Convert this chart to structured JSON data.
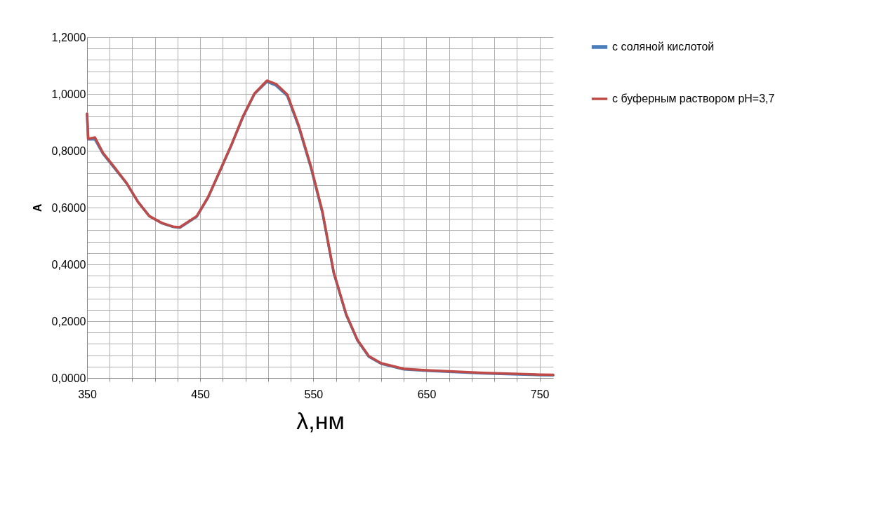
{
  "chart_data": {
    "type": "line",
    "xlabel": "λ,нм",
    "ylabel": "А",
    "xlim": [
      350,
      762
    ],
    "ylim": [
      0,
      1.2
    ],
    "xticks": [
      350,
      {
        "value": 370,
        "label": null
      },
      {
        "value": 390,
        "label": null
      },
      {
        "value": 410,
        "label": null
      },
      {
        "value": 430,
        "label": null
      },
      450,
      {
        "value": 470,
        "label": null
      },
      {
        "value": 490,
        "label": null
      },
      {
        "value": 510,
        "label": null
      },
      {
        "value": 530,
        "label": null
      },
      550,
      {
        "value": 570,
        "label": null
      },
      {
        "value": 590,
        "label": null
      },
      {
        "value": 610,
        "label": null
      },
      {
        "value": 630,
        "label": null
      },
      650,
      {
        "value": 670,
        "label": null
      },
      {
        "value": 690,
        "label": null
      },
      {
        "value": 710,
        "label": null
      },
      {
        "value": 730,
        "label": null
      },
      750
    ],
    "yticks": [
      {
        "value": 0,
        "label": "0,0000"
      },
      {
        "value": 0.04,
        "label": null
      },
      {
        "value": 0.08,
        "label": null
      },
      {
        "value": 0.12,
        "label": null
      },
      {
        "value": 0.16,
        "label": null
      },
      {
        "value": 0.2,
        "label": "0,2000"
      },
      {
        "value": 0.24,
        "label": null
      },
      {
        "value": 0.28,
        "label": null
      },
      {
        "value": 0.32,
        "label": null
      },
      {
        "value": 0.36,
        "label": null
      },
      {
        "value": 0.4,
        "label": "0,4000"
      },
      {
        "value": 0.44,
        "label": null
      },
      {
        "value": 0.48,
        "label": null
      },
      {
        "value": 0.52,
        "label": null
      },
      {
        "value": 0.56,
        "label": null
      },
      {
        "value": 0.6,
        "label": "0,6000"
      },
      {
        "value": 0.64,
        "label": null
      },
      {
        "value": 0.68,
        "label": null
      },
      {
        "value": 0.72,
        "label": null
      },
      {
        "value": 0.76,
        "label": null
      },
      {
        "value": 0.8,
        "label": "0,8000"
      },
      {
        "value": 0.84,
        "label": null
      },
      {
        "value": 0.88,
        "label": null
      },
      {
        "value": 0.92,
        "label": null
      },
      {
        "value": 0.96,
        "label": null
      },
      {
        "value": 1.0,
        "label": "1,0000"
      },
      {
        "value": 1.04,
        "label": null
      },
      {
        "value": 1.08,
        "label": null
      },
      {
        "value": 1.12,
        "label": null
      },
      {
        "value": 1.16,
        "label": null
      },
      {
        "value": 1.2,
        "label": "1,2000"
      }
    ],
    "grid": true,
    "legend": "right",
    "marker": "none",
    "line_style": "solid",
    "x": [
      350,
      351,
      357,
      364,
      374,
      385,
      395,
      405,
      416,
      426,
      432,
      447,
      457,
      467,
      478,
      488,
      498,
      509,
      517,
      527,
      537,
      548,
      558,
      568,
      579,
      589,
      599,
      610,
      630,
      650,
      700,
      750,
      762
    ],
    "series": [
      {
        "name": "с соляной кислотой",
        "color": "#4a7ebb",
        "values": [
          0.93,
          0.84,
          0.84,
          0.79,
          0.74,
          0.685,
          0.62,
          0.57,
          0.545,
          0.532,
          0.529,
          0.568,
          0.635,
          0.724,
          0.823,
          0.92,
          1.0,
          1.043,
          1.03,
          0.993,
          0.885,
          0.738,
          0.582,
          0.37,
          0.222,
          0.132,
          0.075,
          0.05,
          0.03,
          0.025,
          0.016,
          0.01,
          0.009
        ]
      },
      {
        "name": "с буферным раствором pH=3,7",
        "color": "#be4b48",
        "values": [
          0.93,
          0.842,
          0.847,
          0.793,
          0.743,
          0.686,
          0.62,
          0.57,
          0.546,
          0.533,
          0.531,
          0.57,
          0.637,
          0.726,
          0.825,
          0.923,
          1.002,
          1.047,
          1.035,
          0.998,
          0.89,
          0.743,
          0.587,
          0.373,
          0.225,
          0.134,
          0.077,
          0.052,
          0.032,
          0.027,
          0.018,
          0.012,
          0.011
        ]
      }
    ]
  }
}
